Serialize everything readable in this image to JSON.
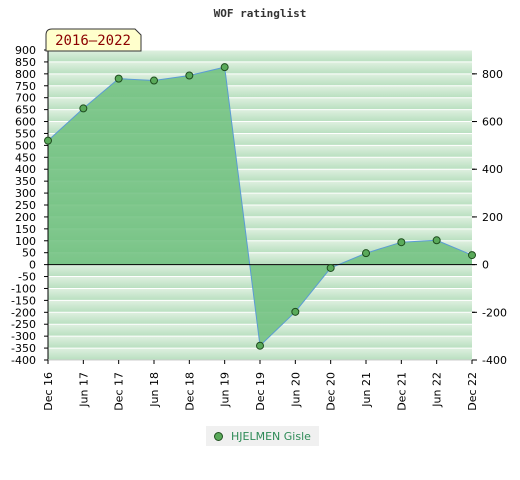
{
  "chart_data": {
    "type": "area",
    "title": "WOF ratinglist",
    "period_label": "2016–2022",
    "x": [
      "Dec 16",
      "Jun 17",
      "Dec 17",
      "Jun 18",
      "Dec 18",
      "Jun 19",
      "Dec 19",
      "Jun 20",
      "Dec 20",
      "Jun 21",
      "Dec 21",
      "Jun 22",
      "Dec 22"
    ],
    "series": [
      {
        "name": "HJELMEN Gisle",
        "values": [
          520,
          655,
          780,
          772,
          793,
          828,
          -340,
          -198,
          -14,
          48,
          94,
          102,
          40
        ]
      }
    ],
    "ylim": [
      -400,
      900
    ],
    "y_left_ticks": [
      900,
      850,
      800,
      750,
      700,
      650,
      600,
      550,
      500,
      450,
      400,
      350,
      300,
      250,
      200,
      150,
      100,
      50,
      0,
      -50,
      -100,
      -150,
      -200,
      -250,
      -300,
      -350,
      -400
    ],
    "y_right_ticks": [
      800,
      600,
      400,
      200,
      0,
      -200,
      -400
    ],
    "colors": {
      "fill": "#6ebf7e",
      "line": "#5b9bd5",
      "marker": "#5aaa5a",
      "badge_bg": "#ffffcc",
      "badge_text": "#8b0000",
      "legend_text": "#2e8b57"
    },
    "grid": true,
    "legend_position": "bottom"
  }
}
